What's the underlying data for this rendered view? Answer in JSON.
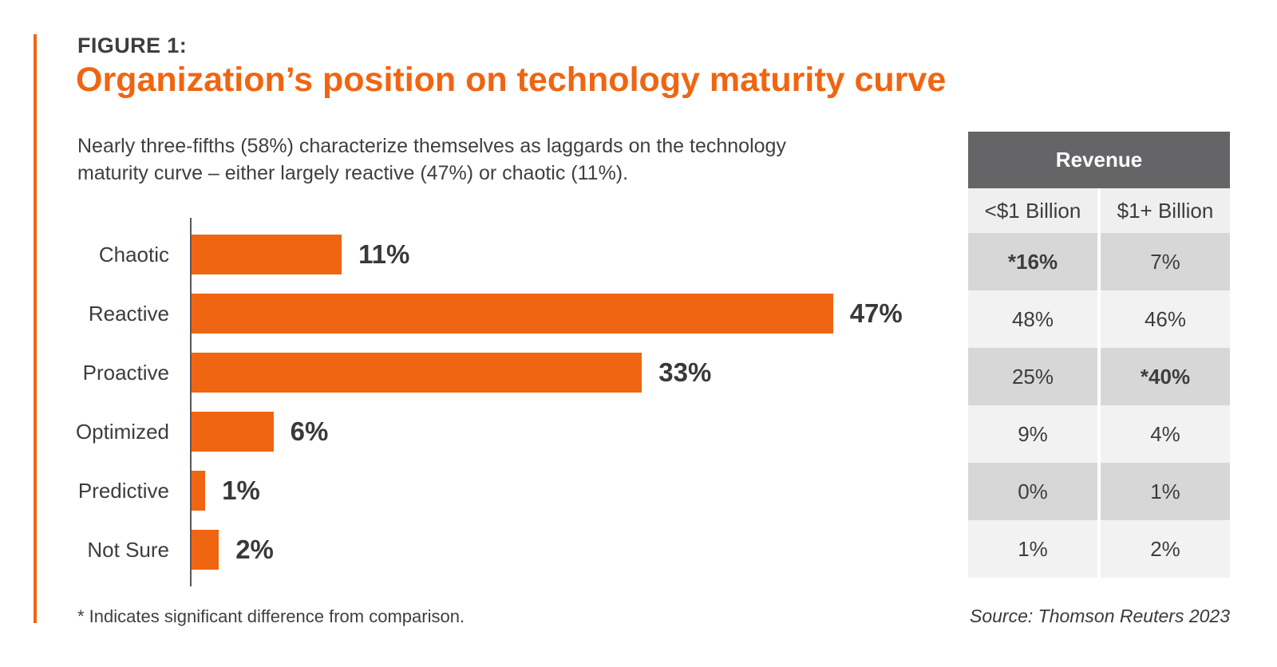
{
  "header": {
    "eyebrow": "FIGURE 1:",
    "title": "Organization’s position on technology maturity curve",
    "subtitle": "Nearly three-fifths (58%) characterize themselves as laggards on the technology maturity curve – either largely reactive (47%) or chaotic (11%)."
  },
  "colors": {
    "accent_orange": "#F06511",
    "bar_orange": "#F06511",
    "text_dark": "#3D3D3F",
    "axis_gray": "#58585A",
    "table_header_bg": "#656567",
    "table_row_dark": "#D7D7D7",
    "table_row_light": "#F2F2F2",
    "table_subheader_bg": "#EFEFEF"
  },
  "chart_data": {
    "type": "bar",
    "orientation": "horizontal",
    "title": "Organization’s position on technology maturity curve",
    "categories": [
      "Chaotic",
      "Reactive",
      "Proactive",
      "Optimized",
      "Predictive",
      "Not Sure"
    ],
    "values": [
      11,
      47,
      33,
      6,
      1,
      2
    ],
    "value_labels": [
      "11%",
      "47%",
      "33%",
      "6%",
      "1%",
      "2%"
    ],
    "series": [
      {
        "name": "<$1 Billion",
        "values": [
          16,
          48,
          25,
          9,
          0,
          1
        ]
      },
      {
        "name": "$1+ Billion",
        "values": [
          7,
          46,
          40,
          4,
          1,
          2
        ]
      }
    ],
    "xlim": [
      0,
      50
    ],
    "grid": false,
    "legend": false,
    "bar_color": "#F06511"
  },
  "table": {
    "header": "Revenue",
    "columns": [
      "<$1 Billion",
      "$1+ Billion"
    ],
    "rows": [
      [
        {
          "text": "*16%",
          "bold": true
        },
        {
          "text": "7%",
          "bold": false
        }
      ],
      [
        {
          "text": "48%",
          "bold": false
        },
        {
          "text": "46%",
          "bold": false
        }
      ],
      [
        {
          "text": "25%",
          "bold": false
        },
        {
          "text": "*40%",
          "bold": true
        }
      ],
      [
        {
          "text": "9%",
          "bold": false
        },
        {
          "text": "4%",
          "bold": false
        }
      ],
      [
        {
          "text": "0%",
          "bold": false
        },
        {
          "text": "1%",
          "bold": false
        }
      ],
      [
        {
          "text": "1%",
          "bold": false
        },
        {
          "text": "2%",
          "bold": false
        }
      ]
    ]
  },
  "footer": {
    "footnote": "* Indicates significant difference from comparison.",
    "source": "Source: Thomson Reuters 2023"
  }
}
